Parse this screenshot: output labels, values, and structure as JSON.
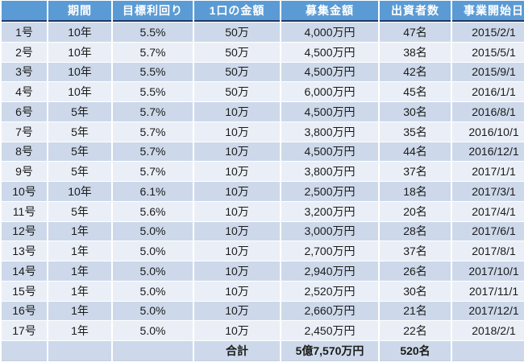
{
  "colors": {
    "header_bg": "#5B9BD5",
    "header_text": "#FFFFFF",
    "header_underline": "#1F3864",
    "row_band_dark": "#CDD9EA",
    "row_band_light": "#EAEFF7",
    "body_text": "#1A1A1A",
    "table_bottom_line": "#C3CEDE"
  },
  "chart_data": {
    "type": "table",
    "columns": [
      "",
      "期間",
      "目標利回り",
      "1口の金額",
      "募集金額",
      "出資者数",
      "事業開始日"
    ],
    "rows": [
      [
        "1号",
        "10年",
        "5.5%",
        "50万",
        "4,000万円",
        "47名",
        "2015/2/1"
      ],
      [
        "2号",
        "10年",
        "5.7%",
        "50万",
        "4,500万円",
        "38名",
        "2015/5/1"
      ],
      [
        "3号",
        "10年",
        "5.5%",
        "50万",
        "4,500万円",
        "42名",
        "2015/9/1"
      ],
      [
        "4号",
        "10年",
        "5.5%",
        "50万",
        "6,000万円",
        "45名",
        "2016/1/1"
      ],
      [
        "6号",
        "5年",
        "5.7%",
        "10万",
        "4,500万円",
        "30名",
        "2016/8/1"
      ],
      [
        "7号",
        "5年",
        "5.7%",
        "10万",
        "3,800万円",
        "35名",
        "2016/10/1"
      ],
      [
        "8号",
        "5年",
        "5.7%",
        "10万",
        "4,500万円",
        "44名",
        "2016/12/1"
      ],
      [
        "9号",
        "5年",
        "5.7%",
        "10万",
        "3,800万円",
        "37名",
        "2017/1/1"
      ],
      [
        "10号",
        "10年",
        "6.1%",
        "10万",
        "2,500万円",
        "18名",
        "2017/3/1"
      ],
      [
        "11号",
        "5年",
        "5.6%",
        "10万",
        "3,200万円",
        "20名",
        "2017/4/1"
      ],
      [
        "12号",
        "1年",
        "5.0%",
        "10万",
        "3,000万円",
        "28名",
        "2017/6/1"
      ],
      [
        "13号",
        "1年",
        "5.0%",
        "10万",
        "2,700万円",
        "37名",
        "2017/8/1"
      ],
      [
        "14号",
        "1年",
        "5.0%",
        "10万",
        "2,940万円",
        "26名",
        "2017/10/1"
      ],
      [
        "15号",
        "1年",
        "5.0%",
        "10万",
        "2,520万円",
        "30名",
        "2017/11/1"
      ],
      [
        "16号",
        "1年",
        "5.0%",
        "10万",
        "2,660万円",
        "21名",
        "2017/12/1"
      ],
      [
        "17号",
        "1年",
        "5.0%",
        "10万",
        "2,450万円",
        "22名",
        "2018/2/1"
      ]
    ],
    "total_row": [
      "",
      "",
      "",
      "合計",
      "5億7,570万円",
      "520名",
      ""
    ]
  }
}
